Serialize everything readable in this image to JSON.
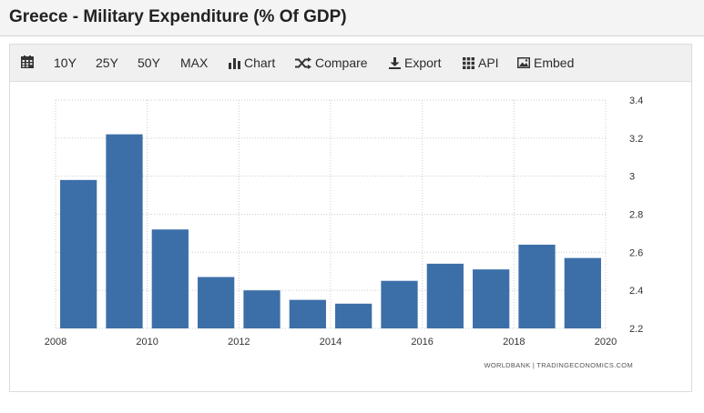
{
  "page": {
    "title": "Greece - Military Expenditure (% Of GDP)"
  },
  "toolbar": {
    "calendar_icon": "calendar-icon",
    "items": [
      {
        "label": "10Y"
      },
      {
        "label": "25Y"
      },
      {
        "label": "50Y"
      },
      {
        "label": "MAX"
      },
      {
        "label": "Chart",
        "icon": "bar-chart-icon"
      },
      {
        "label": "Compare",
        "icon": "shuffle-icon"
      },
      {
        "label": "Export",
        "icon": "download-icon"
      },
      {
        "label": "API",
        "icon": "grid-icon"
      },
      {
        "label": "Embed",
        "icon": "image-icon"
      }
    ]
  },
  "colors": {
    "bar": "#3c6fa8",
    "grid": "#cccccc",
    "axis_text": "#333333"
  },
  "chart_data": {
    "type": "bar",
    "title": "Greece - Military Expenditure (% Of GDP)",
    "source": "WORLDBANK | TRADINGECONOMICS.COM",
    "categories": [
      "2008",
      "2009",
      "2010",
      "2011",
      "2012",
      "2013",
      "2014",
      "2015",
      "2016",
      "2017",
      "2018",
      "2019"
    ],
    "values": [
      2.98,
      3.22,
      2.72,
      2.47,
      2.4,
      2.35,
      2.33,
      2.45,
      2.54,
      2.51,
      2.64,
      2.57
    ],
    "xlim": [
      2008,
      2020
    ],
    "x_ticks": [
      "2008",
      "2010",
      "2012",
      "2014",
      "2016",
      "2018",
      "2020"
    ],
    "ylim": [
      2.2,
      3.4
    ],
    "y_ticks": [
      "2.2",
      "2.4",
      "2.6",
      "2.8",
      "3",
      "3.2",
      "3.4"
    ],
    "xlabel": "",
    "ylabel": "",
    "grid": true,
    "y_axis_side": "right"
  }
}
